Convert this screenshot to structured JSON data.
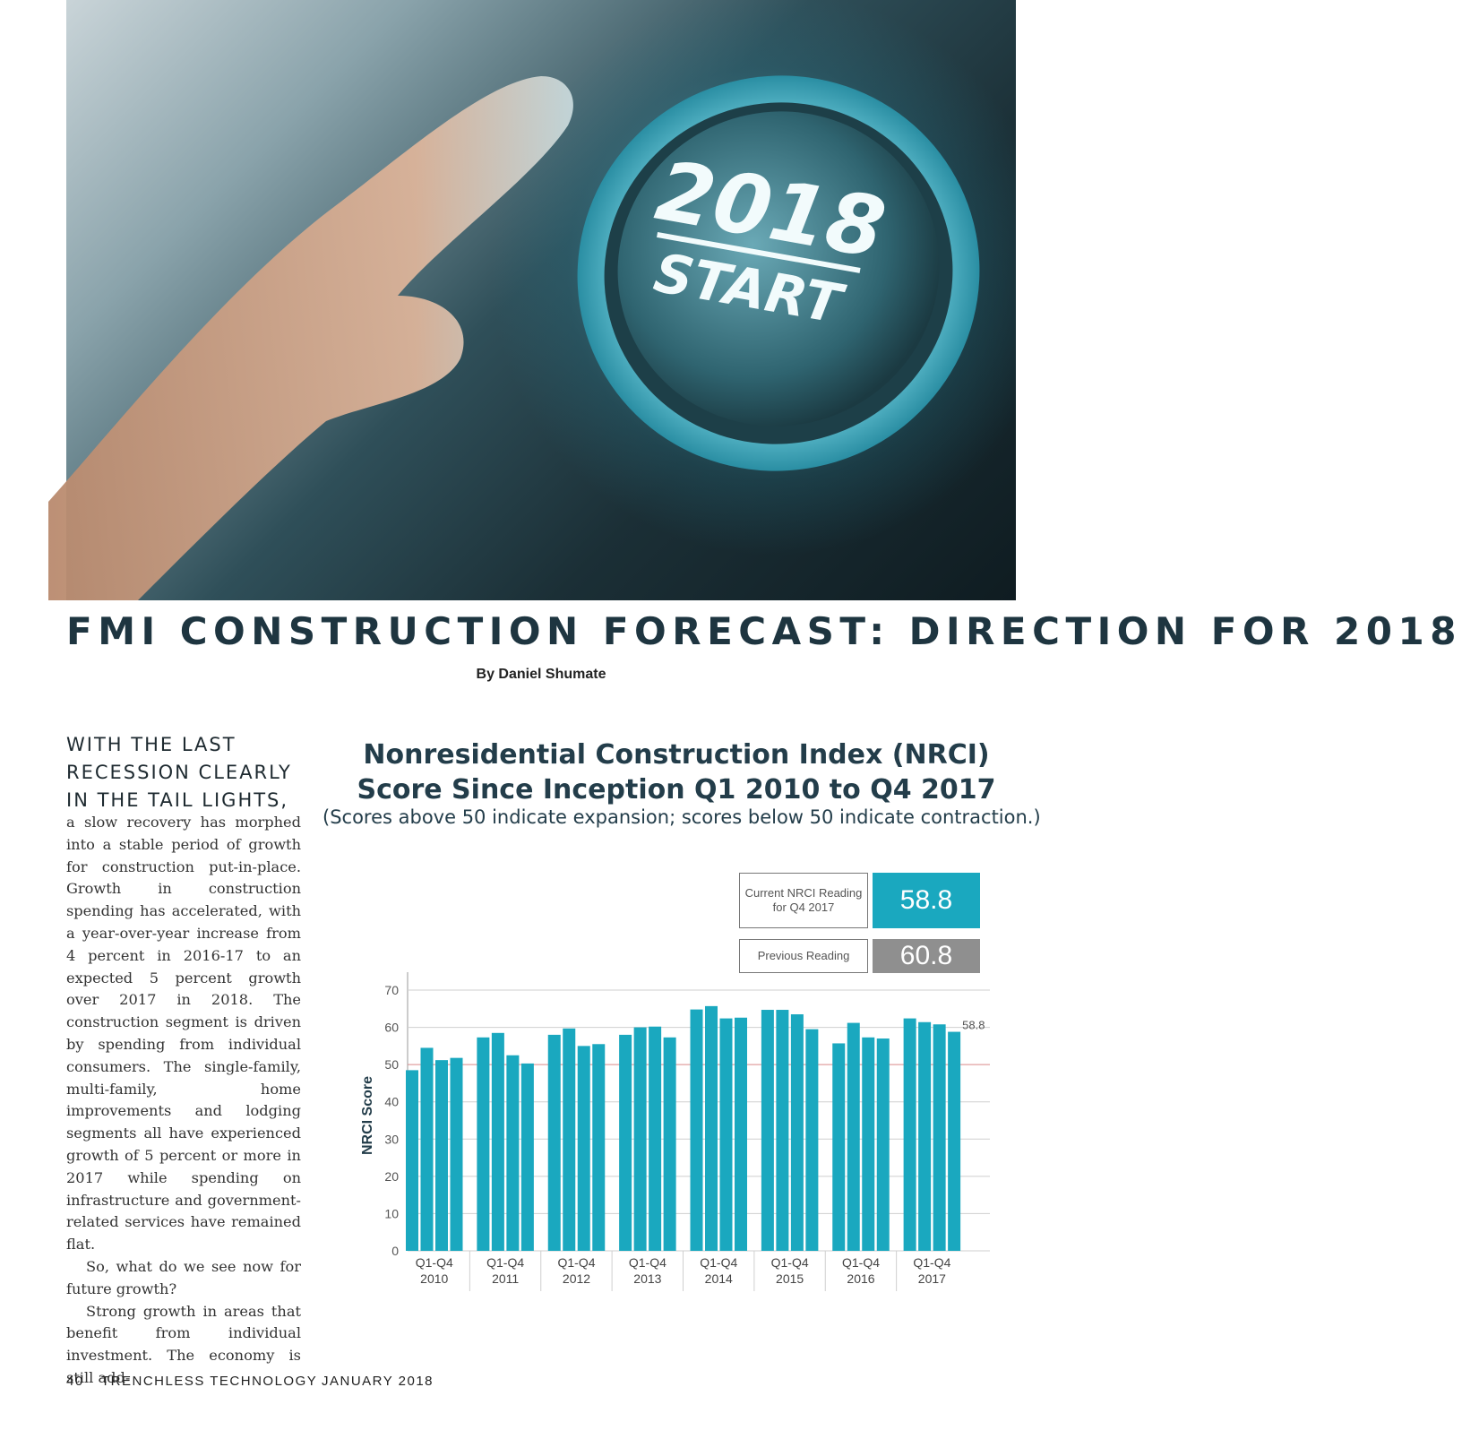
{
  "hero": {
    "button_year": "2018",
    "button_label": "START"
  },
  "article": {
    "title": "FMI CONSTRUCTION FORECAST: DIRECTION FOR 2018",
    "byline": "By Daniel Shumate",
    "lead": "WITH THE LAST\nRECESSION CLEARLY\nIN THE TAIL LIGHTS,",
    "paragraphs": [
      "a slow recovery has morphed into a stable period of growth for construction put-in-place. Growth in construction spending has accelerated, with a year-over-year increase from 4 percent in 2016-17 to an expected 5 percent growth over 2017 in 2018. The construction segment is driven by spending from individual consumers. The single-family, multi-family, home improvements and lodging segments all have experienced growth of 5 percent or more in 2017 while spending on infrastructure and government-related services have remained flat.",
      "So, what do we see now for future growth?",
      "Strong growth in areas that benefit from individual investment. The economy is still add-"
    ]
  },
  "chart_data": {
    "type": "bar",
    "title": "Nonresidential Construction Index (NRCI)",
    "subtitle": "Score Since Inception Q1 2010 to Q4 2017",
    "note": "(Scores above 50 indicate expansion; scores below 50 indicate contraction.)",
    "ylabel": "NRCI Score",
    "ylim": [
      0,
      70
    ],
    "yticks": [
      0,
      10,
      20,
      30,
      40,
      50,
      60,
      70
    ],
    "reference_line": 50,
    "categories": [
      "Q1-Q4\n2010",
      "Q1-Q4\n2011",
      "Q1-Q4\n2012",
      "Q1-Q4\n2013",
      "Q1-Q4\n2014",
      "Q1-Q4\n2015",
      "Q1-Q4\n2016",
      "Q1-Q4\n2017"
    ],
    "values": [
      [
        48.5,
        54.5,
        51.2,
        51.8
      ],
      [
        57.3,
        58.5,
        52.5,
        50.3
      ],
      [
        58.0,
        59.7,
        55.0,
        55.5
      ],
      [
        58.0,
        60.0,
        60.2,
        57.3
      ],
      [
        64.8,
        65.7,
        62.4,
        62.6
      ],
      [
        64.7,
        64.7,
        63.5,
        59.5
      ],
      [
        55.7,
        61.2,
        57.3,
        57.0
      ],
      [
        62.4,
        61.4,
        60.8,
        58.8
      ]
    ],
    "annotation": "58.8",
    "bar_color": "#1aa8bf",
    "current": {
      "label": "Current NRCI Reading\nfor Q4 2017",
      "value": "58.8",
      "color": "#1aa8bf"
    },
    "previous": {
      "label": "Previous Reading",
      "value": "60.8",
      "color": "#8f8f8f"
    }
  },
  "footer": {
    "page": "40",
    "magazine": "TRENCHLESS TECHNOLOGY",
    "date": "JANUARY 2018"
  }
}
